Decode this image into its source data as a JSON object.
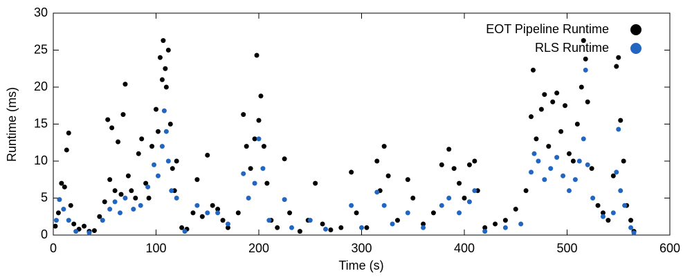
{
  "chart_data": {
    "type": "scatter",
    "xlabel": "Time (s)",
    "ylabel": "Runtime (ms)",
    "xlim": [
      0,
      600
    ],
    "xticks": [
      0,
      100,
      200,
      300,
      400,
      500,
      600
    ],
    "ylim": [
      0,
      30
    ],
    "yticks": [
      0,
      5,
      10,
      15,
      20,
      25,
      30
    ],
    "legend": "upper right",
    "series": [
      {
        "name": "EOT Pipeline Runtime",
        "color": "#000000",
        "x": [
          2,
          5,
          8,
          11,
          13,
          15,
          17,
          20,
          25,
          30,
          35,
          40,
          45,
          50,
          53,
          55,
          57,
          60,
          63,
          66,
          68,
          70,
          73,
          76,
          80,
          83,
          86,
          90,
          93,
          96,
          100,
          102,
          104,
          106,
          107,
          109,
          110,
          112,
          114,
          116,
          118,
          120,
          125,
          130,
          136,
          140,
          145,
          150,
          155,
          160,
          165,
          170,
          180,
          185,
          188,
          192,
          196,
          198,
          200,
          202,
          205,
          208,
          212,
          218,
          225,
          230,
          240,
          248,
          255,
          262,
          270,
          280,
          290,
          295,
          305,
          315,
          318,
          322,
          326,
          335,
          345,
          350,
          360,
          370,
          378,
          385,
          390,
          395,
          400,
          405,
          410,
          413,
          420,
          430,
          440,
          450,
          460,
          465,
          467,
          470,
          475,
          478,
          482,
          486,
          490,
          494,
          498,
          502,
          506,
          510,
          514,
          516,
          518,
          520,
          524,
          530,
          535,
          540,
          545,
          548,
          550,
          552,
          555,
          558,
          562,
          565
        ],
        "values": [
          1.2,
          3,
          7,
          6.5,
          11.5,
          13.8,
          4,
          1.5,
          0.8,
          1.2,
          0.5,
          0.6,
          2.5,
          4.5,
          15.6,
          7.5,
          14.5,
          6,
          12.6,
          5.5,
          16.3,
          20.4,
          8,
          6,
          5,
          11,
          13,
          7,
          5,
          12,
          17,
          14,
          24,
          21,
          26.3,
          22.5,
          20,
          25,
          15,
          9,
          6,
          10,
          1,
          0.8,
          3,
          7.5,
          2.5,
          10.8,
          4,
          3.5,
          2,
          1,
          3,
          16.3,
          12,
          9,
          13,
          24.3,
          15.5,
          18.8,
          12,
          7,
          2,
          1,
          10.3,
          3,
          0.5,
          2,
          7,
          1.5,
          0.7,
          1,
          8.5,
          3,
          1,
          10,
          6,
          12,
          8,
          2,
          7.5,
          5,
          1.5,
          3,
          9.5,
          11.6,
          9,
          7,
          5,
          9.5,
          10,
          6,
          1,
          1.5,
          2,
          3.5,
          6,
          16,
          22.3,
          13,
          17,
          19,
          12,
          18,
          19.2,
          14,
          17.5,
          11,
          10,
          15,
          20,
          26.3,
          23.8,
          18,
          9,
          4,
          3,
          2,
          8,
          22.8,
          24,
          15.5,
          10,
          4,
          2,
          0.5
        ]
      },
      {
        "name": "RLS Runtime",
        "color": "#2166c0",
        "x": [
          3,
          6,
          10,
          15,
          22,
          35,
          48,
          55,
          60,
          65,
          70,
          78,
          85,
          92,
          98,
          102,
          106,
          108,
          110,
          112,
          115,
          120,
          128,
          140,
          150,
          160,
          170,
          185,
          190,
          196,
          200,
          204,
          210,
          225,
          232,
          250,
          265,
          290,
          300,
          315,
          322,
          330,
          345,
          360,
          378,
          385,
          395,
          405,
          410,
          420,
          440,
          455,
          465,
          468,
          472,
          478,
          484,
          490,
          496,
          502,
          508,
          512,
          516,
          518,
          520,
          525,
          535,
          545,
          548,
          550,
          552,
          556,
          562,
          565
        ],
        "values": [
          2,
          4.8,
          3.5,
          2,
          0.5,
          0.3,
          2,
          3.5,
          4.5,
          3,
          5,
          3.5,
          4,
          6.5,
          9.5,
          8,
          12,
          16.8,
          14,
          10,
          6,
          5,
          0.5,
          4,
          3,
          3,
          1.5,
          8.3,
          5,
          7,
          13,
          9,
          2,
          4.8,
          1,
          2,
          0.8,
          4,
          1,
          5.8,
          4,
          1.5,
          3,
          1,
          4,
          5,
          3,
          4.5,
          6,
          0.5,
          1,
          1.5,
          8.5,
          11,
          10,
          7.5,
          9,
          10.5,
          8,
          6,
          7.5,
          10,
          13,
          22.3,
          9.5,
          5,
          2.5,
          3,
          8.5,
          14.3,
          6,
          4,
          1,
          0.3
        ]
      }
    ]
  }
}
